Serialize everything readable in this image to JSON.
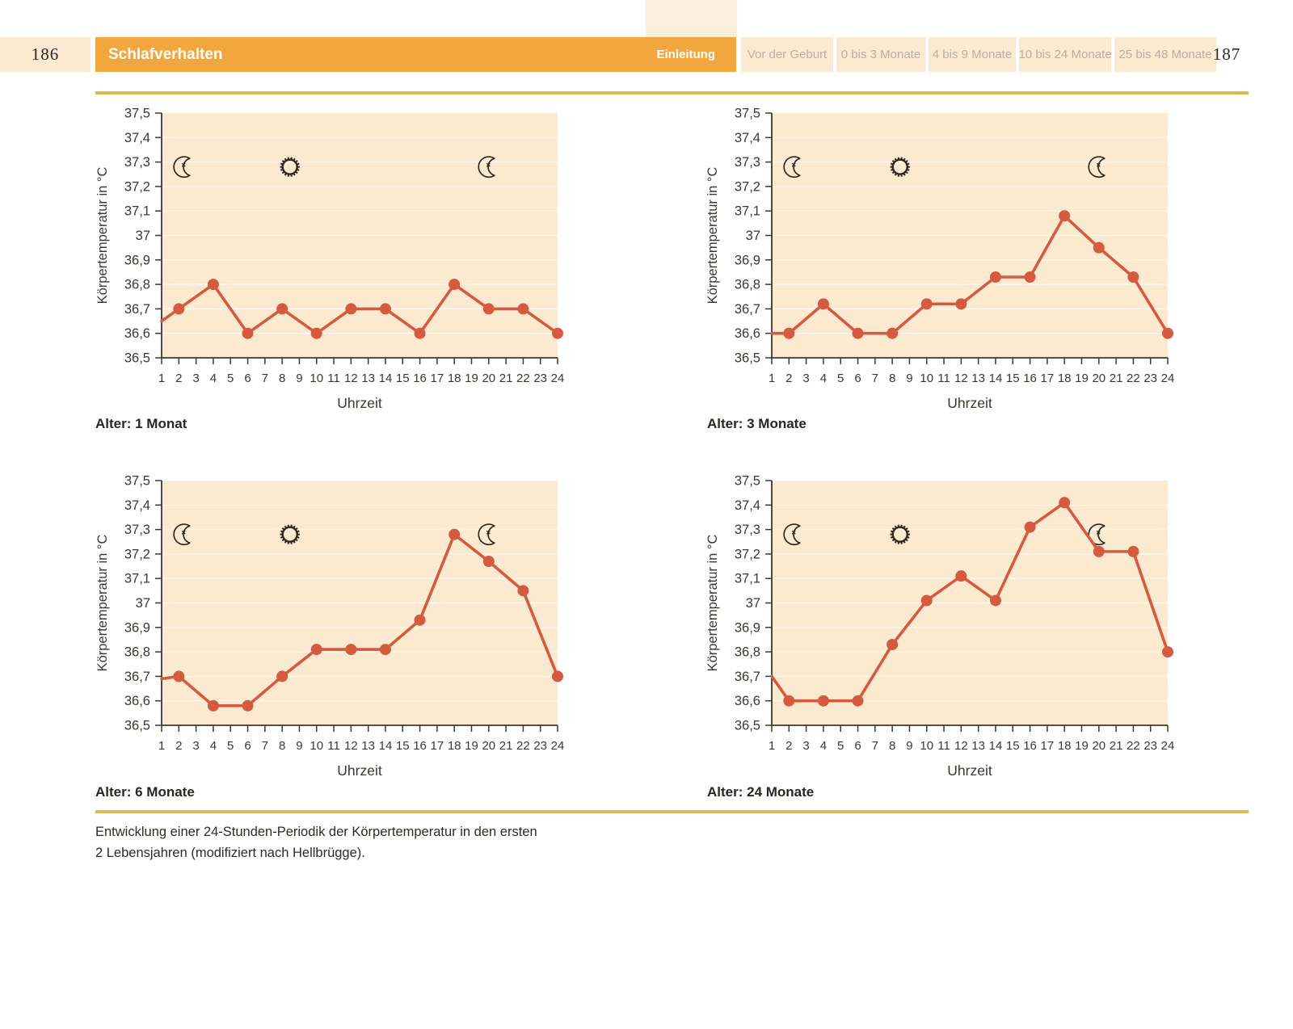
{
  "page": {
    "left_page_number": "186",
    "right_page_number": "187",
    "section_title": "Schlafverhalten",
    "active_tab": "Einleitung",
    "tabs": [
      "Vor der Geburt",
      "0 bis 3 Monate",
      "4 bis 9 Monate",
      "10 bis 24 Monate",
      "25 bis 48 Monate"
    ],
    "figure_caption_line1": "Entwicklung einer 24-Stunden-Periodik der Körpertemperatur in den ersten",
    "figure_caption_line2": "2 Lebensjahren (modifiziert nach Hellbrügge)."
  },
  "colors": {
    "accent_orange": "#F1A73E",
    "beige": "#FAEAD2",
    "tab_text": "#B9AFA2",
    "chart_bg": "#FBEAD0",
    "line": "#D55A3F",
    "axis": "#3C3731",
    "rule_gold": "#DCBA52",
    "icon_stroke": "#2E2920",
    "gridline": "rgba(255,255,255,0.6)"
  },
  "axes": {
    "xlabel": "Uhrzeit",
    "ylabel": "Körpertemperatur in °C",
    "ylim": [
      36.5,
      37.5
    ],
    "y_tick_labels": [
      "37,5",
      "37,4",
      "37,3",
      "37,2",
      "37,1",
      "37",
      "36,9",
      "36,8",
      "36,7",
      "36,6",
      "36,5"
    ],
    "x_tick_labels": [
      "1",
      "2",
      "3",
      "4",
      "5",
      "6",
      "7",
      "8",
      "9",
      "10",
      "11",
      "12",
      "13",
      "14",
      "15",
      "16",
      "17",
      "18",
      "19",
      "20",
      "21",
      "22",
      "23",
      "24"
    ],
    "grid": "faint horizontal lines every 0.1",
    "legend": "none",
    "icons": [
      {
        "type": "moon",
        "hour": 2.3,
        "temp": 37.28
      },
      {
        "type": "sun",
        "hour": 8.45,
        "temp": 37.28
      },
      {
        "type": "moon",
        "hour": 20.0,
        "temp": 37.28
      }
    ]
  },
  "chart_data": [
    {
      "type": "line",
      "caption": "Alter: 1 Monat",
      "x": [
        1,
        2,
        4,
        6,
        8,
        10,
        12,
        14,
        16,
        18,
        20,
        22,
        24
      ],
      "values": [
        36.65,
        36.7,
        36.8,
        36.6,
        36.7,
        36.6,
        36.7,
        36.7,
        36.6,
        36.8,
        36.7,
        36.7,
        36.6
      ]
    },
    {
      "type": "line",
      "caption": "Alter: 3 Monate",
      "x": [
        1,
        2,
        4,
        6,
        8,
        10,
        12,
        14,
        16,
        18,
        20,
        22,
        24
      ],
      "values": [
        36.6,
        36.6,
        36.72,
        36.6,
        36.6,
        36.72,
        36.72,
        36.83,
        36.83,
        37.08,
        36.95,
        36.83,
        36.6
      ]
    },
    {
      "type": "line",
      "caption": "Alter: 6 Monate",
      "x": [
        1,
        2,
        4,
        6,
        8,
        10,
        12,
        14,
        16,
        18,
        20,
        22,
        24
      ],
      "values": [
        36.69,
        36.7,
        36.58,
        36.58,
        36.7,
        36.81,
        36.81,
        36.81,
        36.93,
        37.28,
        37.17,
        37.05,
        36.7
      ]
    },
    {
      "type": "line",
      "caption": "Alter: 24 Monate",
      "x": [
        1,
        2,
        4,
        6,
        8,
        10,
        12,
        14,
        16,
        18,
        20,
        22,
        24
      ],
      "values": [
        36.7,
        36.6,
        36.6,
        36.6,
        36.83,
        37.01,
        37.11,
        37.01,
        37.31,
        37.41,
        37.21,
        37.21,
        36.8
      ]
    }
  ]
}
